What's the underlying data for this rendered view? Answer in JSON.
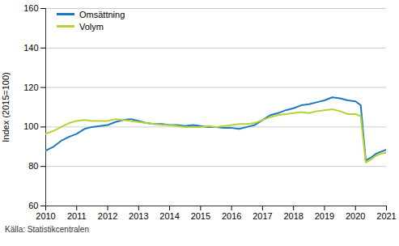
{
  "chart_data": {
    "type": "line",
    "y_label": "Index (2015=100)",
    "caption": "Källa: Statistikcentralen",
    "x": [
      2010.0,
      2010.25,
      2010.5,
      2010.75,
      2011.0,
      2011.25,
      2011.5,
      2011.75,
      2012.0,
      2012.25,
      2012.5,
      2012.75,
      2013.0,
      2013.25,
      2013.5,
      2013.75,
      2014.0,
      2014.25,
      2014.5,
      2014.75,
      2015.0,
      2015.25,
      2015.5,
      2015.75,
      2016.0,
      2016.25,
      2016.5,
      2016.75,
      2017.0,
      2017.25,
      2017.5,
      2017.75,
      2018.0,
      2018.25,
      2018.5,
      2018.75,
      2019.0,
      2019.25,
      2019.5,
      2019.75,
      2020.0,
      2020.17,
      2020.33,
      2020.5,
      2020.67,
      2020.83,
      2021.0
    ],
    "series": [
      {
        "name": "Omsättning",
        "color": "#1a7abf",
        "values": [
          88,
          90,
          93,
          95,
          96.5,
          99,
          100,
          100.5,
          101,
          102.5,
          103.5,
          104,
          103,
          102,
          101.5,
          101.5,
          101,
          101,
          100.5,
          101,
          100.5,
          100,
          100,
          99.5,
          99.5,
          99,
          100,
          101,
          103.5,
          106,
          107,
          108.5,
          109.5,
          111,
          111.5,
          112.5,
          113.5,
          115,
          114.5,
          113.5,
          113,
          111,
          83,
          84.5,
          86.5,
          87.5,
          88.5
        ]
      },
      {
        "name": "Volym",
        "color": "#b5d334",
        "values": [
          96.5,
          98,
          100,
          102,
          103,
          103.5,
          103,
          103,
          103,
          104,
          103.5,
          103,
          102.5,
          102,
          101.5,
          101,
          101,
          100.5,
          100,
          100,
          100,
          100.5,
          100,
          100.5,
          101,
          101.5,
          101.5,
          102,
          103.5,
          105,
          106,
          106.5,
          107,
          107.5,
          107,
          108,
          108.5,
          109,
          108,
          106.5,
          106.5,
          105.5,
          82,
          83.5,
          85.5,
          86.5,
          87
        ]
      }
    ],
    "xlim": [
      2010,
      2021
    ],
    "xticks": [
      2010,
      2011,
      2012,
      2013,
      2014,
      2015,
      2016,
      2017,
      2018,
      2019,
      2020,
      2021
    ],
    "ylim": [
      60,
      160
    ],
    "yticks": [
      60,
      80,
      100,
      120,
      140,
      160
    ],
    "grid": true,
    "legend": "upper left"
  }
}
